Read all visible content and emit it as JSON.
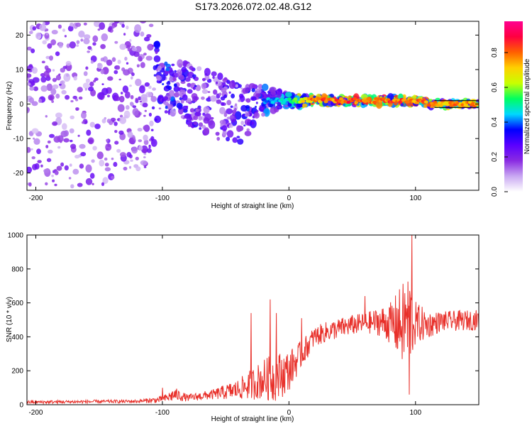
{
  "title": "S173.2026.072.02.48.G12",
  "charts": [
    {
      "type": "heatmap",
      "name": "spectrogram",
      "xlabel": "Height of straight line (km)",
      "ylabel": "Frequency (Hz)",
      "xlim": [
        -207,
        150
      ],
      "ylim": [
        -25,
        24
      ],
      "xticks": [
        -200,
        -100,
        0,
        100
      ],
      "yticks": [
        20,
        10,
        0,
        -10,
        -20
      ],
      "xtick_labels": [
        "-200",
        "-100",
        "0",
        "100"
      ],
      "ytick_labels": [
        "20",
        "10",
        "0",
        "-10",
        "-20"
      ],
      "guide_lines_hz": [
        1,
        -1
      ],
      "guide_start_km": 115,
      "colorbar": {
        "label": "Normalized spectral amplitude",
        "ticks": [
          0.0,
          0.2,
          0.4,
          0.6,
          0.8
        ],
        "tick_labels": [
          "0.0",
          "0.2",
          "0.4",
          "0.6",
          "0.8"
        ],
        "range": [
          0,
          0.98
        ],
        "colors": [
          "#ffffff",
          "#c9a8f2",
          "#8a2be2",
          "#5a00ff",
          "#0000ff",
          "#00d8ff",
          "#00ff60",
          "#c8ff00",
          "#ffd000",
          "#ff6000",
          "#ff0040",
          "#ff0090"
        ]
      },
      "profile": {
        "km": [
          -207,
          -150,
          -110,
          -100,
          -80,
          -60,
          -40,
          -20,
          0,
          20,
          50,
          80,
          100,
          115,
          150
        ],
        "center_hz": [
          0,
          0,
          4,
          5,
          3,
          0,
          -3,
          1,
          1,
          1,
          1,
          1,
          1,
          0,
          0
        ],
        "spread_hz": [
          24,
          24,
          22,
          7,
          9,
          10,
          9,
          4,
          2,
          1.2,
          1.2,
          1.2,
          1.2,
          0.8,
          0.8
        ],
        "peak_amp": [
          0.25,
          0.25,
          0.25,
          0.45,
          0.35,
          0.3,
          0.35,
          0.45,
          0.55,
          0.9,
          0.92,
          0.92,
          0.9,
          0.85,
          0.85
        ]
      }
    },
    {
      "type": "line",
      "name": "snr",
      "xlabel": "Height of straight line (km)",
      "ylabel": "SNR (10 * v/v)",
      "xlim": [
        -207,
        150
      ],
      "ylim": [
        0,
        1000
      ],
      "xticks": [
        -200,
        -100,
        0,
        100
      ],
      "yticks": [
        0,
        200,
        400,
        600,
        800,
        1000
      ],
      "xtick_labels": [
        "-200",
        "-100",
        "0",
        "100"
      ],
      "ytick_labels": [
        "0",
        "200",
        "400",
        "600",
        "800",
        "1000"
      ],
      "color": "#e8302a",
      "envelope": {
        "km": [
          -207,
          -120,
          -100,
          -90,
          -80,
          -60,
          -40,
          -20,
          -10,
          0,
          10,
          20,
          30,
          40,
          50,
          60,
          70,
          80,
          90,
          95,
          100,
          110,
          120,
          150
        ],
        "mean": [
          15,
          20,
          30,
          60,
          40,
          60,
          90,
          150,
          160,
          200,
          300,
          400,
          430,
          450,
          470,
          480,
          490,
          480,
          470,
          500,
          480,
          470,
          490,
          500
        ],
        "amp": [
          10,
          10,
          20,
          40,
          20,
          30,
          60,
          120,
          150,
          120,
          80,
          60,
          60,
          60,
          60,
          60,
          80,
          120,
          250,
          300,
          130,
          80,
          60,
          60
        ]
      },
      "peaks": [
        [
          97,
          1000
        ],
        [
          -100,
          100
        ],
        [
          -30,
          540
        ],
        [
          -15,
          620
        ],
        [
          -10,
          540
        ],
        [
          10,
          510
        ],
        [
          60,
          640
        ],
        [
          92,
          420
        ],
        [
          95,
          60
        ]
      ]
    }
  ]
}
